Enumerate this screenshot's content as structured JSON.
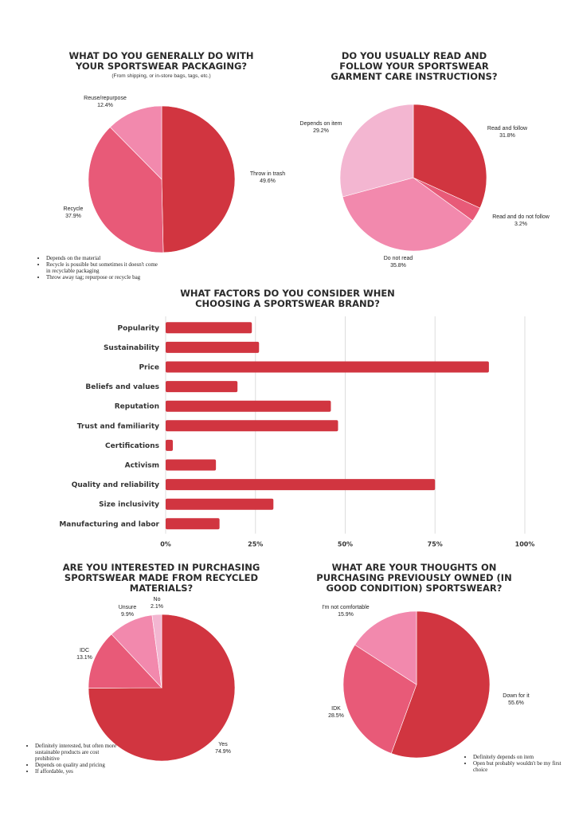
{
  "colors": {
    "red": "#d13540",
    "pink": "#e85a78",
    "light_pink": "#f289ad",
    "pale_pink": "#f3b6d1",
    "grid": "#dddddd"
  },
  "chart_data": [
    {
      "id": "packaging",
      "type": "pie",
      "title": "WHAT DO YOU GENERALLY DO WITH YOUR SPORTSWEAR PACKAGING?",
      "subtitle": "(From shipping, or in-store bags, tags, etc.)",
      "slices": [
        {
          "label": "Throw in trash",
          "value": 49.6,
          "value_label": "49.6%",
          "color": "#d13540"
        },
        {
          "label": "Recycle",
          "value": 37.9,
          "value_label": "37.9%",
          "color": "#e85a78"
        },
        {
          "label": "Reuse/repurpose",
          "value": 12.4,
          "value_label": "12.4%",
          "color": "#f289ad"
        }
      ],
      "notes": [
        "Depends on the material",
        "Recycle is possible but sometimes it doesn't come in recyclable packaging",
        "Throw away tag; repurpose or recycle bag"
      ]
    },
    {
      "id": "care",
      "type": "pie",
      "title": "DO YOU USUALLY READ AND FOLLOW YOUR SPORTSWEAR GARMENT CARE INSTRUCTIONS?",
      "slices": [
        {
          "label": "Read and follow",
          "value": 31.8,
          "value_label": "31.8%",
          "color": "#d13540"
        },
        {
          "label": "Read and do not follow",
          "value": 3.2,
          "value_label": "3.2%",
          "color": "#e85a78"
        },
        {
          "label": "Do not read",
          "value": 35.8,
          "value_label": "35.8%",
          "color": "#f289ad"
        },
        {
          "label": "Depends on item",
          "value": 29.2,
          "value_label": "29.2%",
          "color": "#f3b6d1"
        }
      ]
    },
    {
      "id": "factors",
      "type": "bar",
      "orientation": "horizontal",
      "title": "WHAT FACTORS DO YOU CONSIDER WHEN CHOOSING A SPORTSWEAR BRAND?",
      "categories": [
        "Popularity",
        "Sustainability",
        "Price",
        "Beliefs and values",
        "Reputation",
        "Trust and familiarity",
        "Certifications",
        "Activism",
        "Quality and reliability",
        "Size inclusivity",
        "Manufacturing and labor"
      ],
      "values": [
        24,
        26,
        90,
        20,
        46,
        48,
        2,
        14,
        75,
        30,
        15
      ],
      "xlim": [
        0,
        100
      ],
      "ticks": [
        "0%",
        "25%",
        "50%",
        "75%",
        "100%"
      ],
      "grid": true
    },
    {
      "id": "recycled",
      "type": "pie",
      "title": "ARE YOU INTERESTED IN PURCHASING SPORTSWEAR MADE FROM RECYCLED MATERIALS?",
      "slices": [
        {
          "label": "Yes",
          "value": 74.9,
          "value_label": "74.9%",
          "color": "#d13540"
        },
        {
          "label": "IDC",
          "value": 13.1,
          "value_label": "13.1%",
          "color": "#e85a78"
        },
        {
          "label": "Unsure",
          "value": 9.9,
          "value_label": "9.9%",
          "color": "#f289ad"
        },
        {
          "label": "No",
          "value": 2.1,
          "value_label": "2.1%",
          "color": "#f3b6d1"
        }
      ],
      "notes": [
        "Definitely interested, but often more sustainable products are cost prohibitive",
        "Depends on quality and pricing",
        "If affordable, yes"
      ]
    },
    {
      "id": "preowned",
      "type": "pie",
      "title": "WHAT ARE YOUR THOUGHTS ON PURCHASING PREVIOUSLY OWNED (IN GOOD CONDITION) SPORTSWEAR?",
      "slices": [
        {
          "label": "Down for it",
          "value": 55.6,
          "value_label": "55.6%",
          "color": "#d13540"
        },
        {
          "label": "IDK",
          "value": 28.5,
          "value_label": "28.5%",
          "color": "#e85a78"
        },
        {
          "label": "I'm not comfortable",
          "value": 15.9,
          "value_label": "15.9%",
          "color": "#f289ad"
        }
      ],
      "notes": [
        "Definitely depends on item",
        "Open but probably wouldn't be my first choice"
      ]
    }
  ]
}
